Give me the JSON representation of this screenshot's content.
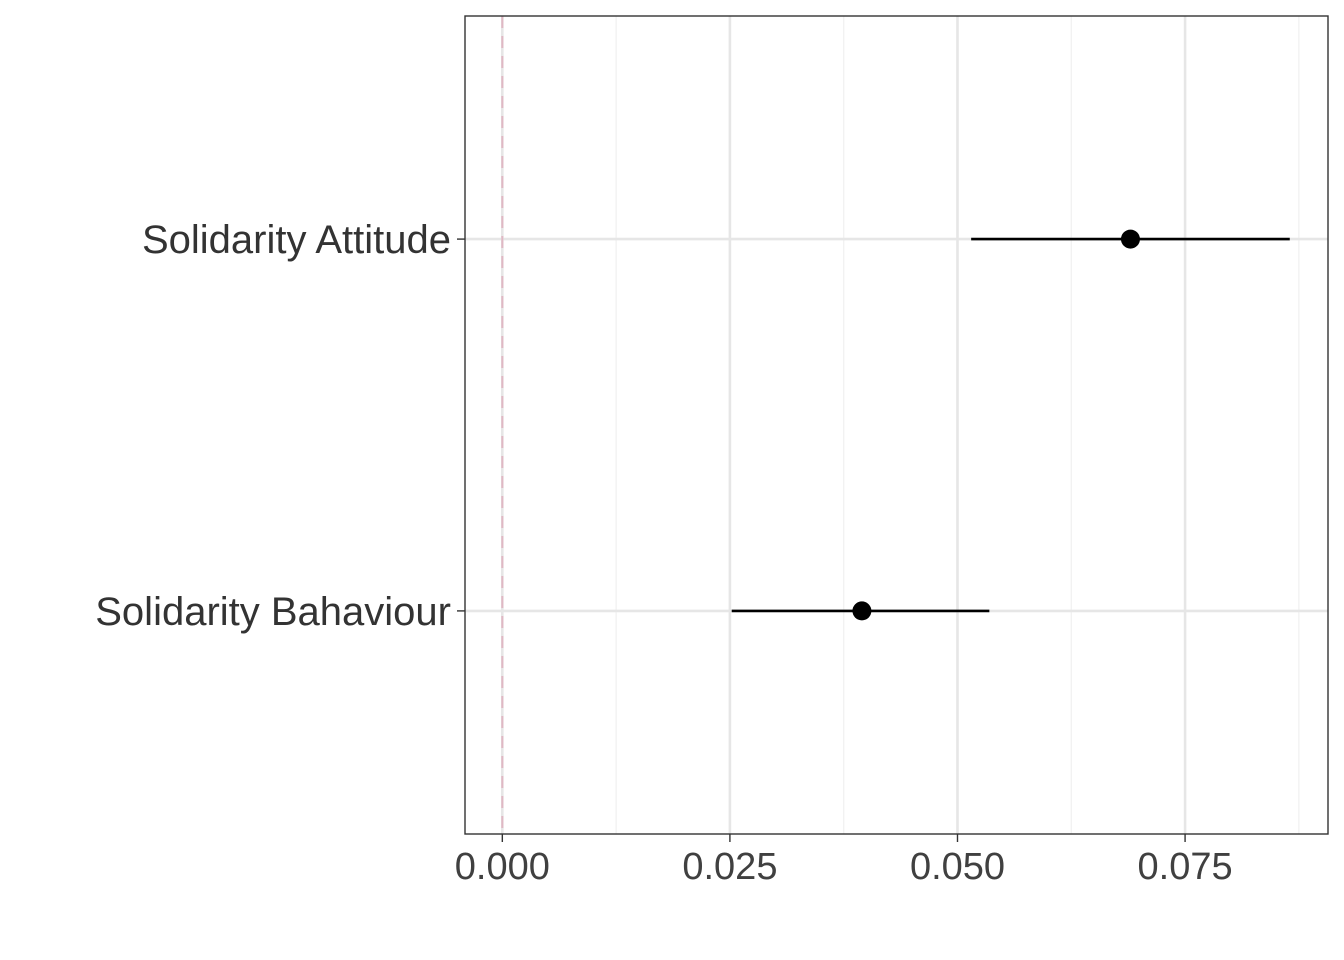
{
  "chart_data": {
    "type": "scatter",
    "subtype": "coefficient-plot",
    "title": "",
    "xlabel": "",
    "ylabel": "",
    "categories": [
      "Solidarity Attitude",
      "Solidarity Bahaviour"
    ],
    "series": [
      {
        "points": [
          {
            "category": "Solidarity Attitude",
            "estimate": 0.069,
            "lower": 0.0515,
            "upper": 0.0865
          },
          {
            "category": "Solidarity Bahaviour",
            "estimate": 0.0395,
            "lower": 0.0252,
            "upper": 0.0535
          }
        ]
      }
    ],
    "xlim": [
      -0.0041,
      0.0907
    ],
    "xticks": [
      0.0,
      0.025,
      0.05,
      0.075
    ],
    "xtick_labels": [
      "0.000",
      "0.025",
      "0.050",
      "0.075"
    ],
    "reference_line": {
      "x": 0.0,
      "style": "dashed",
      "color": "#e0b8c4"
    },
    "grid": true,
    "legend": "none",
    "colors": {
      "points": "#000000",
      "grid_major": "#e6e6e6",
      "grid_minor": "#f2f2f2",
      "panel_border": "#333333"
    }
  }
}
